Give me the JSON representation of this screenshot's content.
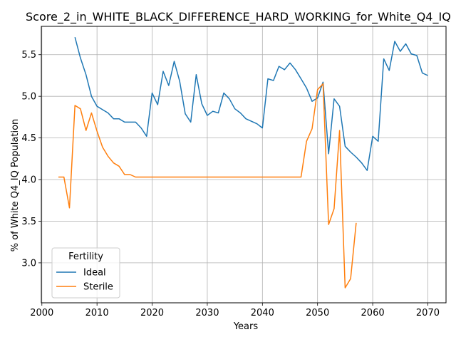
{
  "chart_data": {
    "type": "line",
    "title": "Score_2_in_WHITE_BLACK_DIFFERENCE_HARD_WORKING_for_White_Q4_IQ",
    "xlabel": "Years",
    "ylabel": "% of White Q4_IQ Population",
    "xlim": [
      1999.9,
      2073.3
    ],
    "ylim": [
      2.52,
      5.84
    ],
    "xticks": [
      2000,
      2010,
      2020,
      2030,
      2040,
      2050,
      2060,
      2070
    ],
    "yticks": [
      3.0,
      3.5,
      4.0,
      4.5,
      5.0,
      5.5
    ],
    "ytick_labels": [
      "3.0",
      "3.5",
      "4.0",
      "4.5",
      "5.0",
      "5.5"
    ],
    "grid": true,
    "legend": {
      "title": "Fertility",
      "position": "lower-left"
    },
    "series": [
      {
        "name": "Ideal",
        "color": "#1f77b4",
        "x": [
          2006,
          2007,
          2008,
          2009,
          2010,
          2011,
          2012,
          2013,
          2014,
          2015,
          2016,
          2017,
          2018,
          2019,
          2020,
          2021,
          2022,
          2023,
          2024,
          2025,
          2026,
          2027,
          2028,
          2029,
          2030,
          2031,
          2032,
          2033,
          2034,
          2035,
          2036,
          2037,
          2038,
          2039,
          2040,
          2041,
          2042,
          2043,
          2044,
          2045,
          2046,
          2047,
          2048,
          2049,
          2050,
          2051,
          2052,
          2053,
          2054,
          2055,
          2056,
          2057,
          2058,
          2059,
          2060,
          2061,
          2062,
          2063,
          2064,
          2065,
          2066,
          2067,
          2068,
          2069,
          2070
        ],
        "y": [
          5.71,
          5.46,
          5.26,
          5.0,
          4.88,
          4.84,
          4.8,
          4.73,
          4.73,
          4.69,
          4.69,
          4.69,
          4.62,
          4.52,
          5.04,
          4.9,
          5.3,
          5.13,
          5.42,
          5.18,
          4.79,
          4.69,
          5.26,
          4.91,
          4.77,
          4.82,
          4.8,
          5.04,
          4.97,
          4.85,
          4.8,
          4.73,
          4.7,
          4.67,
          4.62,
          5.21,
          5.19,
          5.36,
          5.32,
          5.4,
          5.32,
          5.21,
          5.1,
          4.94,
          4.98,
          5.17,
          4.31,
          4.97,
          4.88,
          4.4,
          4.33,
          4.27,
          4.2,
          4.11,
          4.52,
          4.46,
          5.45,
          5.31,
          5.66,
          5.54,
          5.63,
          5.51,
          5.49,
          5.28,
          5.25
        ]
      },
      {
        "name": "Sterile",
        "color": "#ff7f0e",
        "x": [
          2003,
          2004,
          2005,
          2006,
          2007,
          2008,
          2009,
          2010,
          2011,
          2012,
          2013,
          2014,
          2015,
          2016,
          2017,
          2018,
          2019,
          2020,
          2021,
          2022,
          2023,
          2024,
          2025,
          2026,
          2027,
          2028,
          2029,
          2030,
          2031,
          2032,
          2033,
          2034,
          2035,
          2036,
          2037,
          2038,
          2039,
          2040,
          2041,
          2042,
          2043,
          2044,
          2045,
          2046,
          2047,
          2048,
          2049,
          2050,
          2051,
          2052,
          2053,
          2054,
          2055,
          2056,
          2057
        ],
        "y": [
          4.03,
          4.03,
          3.66,
          4.89,
          4.85,
          4.59,
          4.8,
          4.58,
          4.39,
          4.28,
          4.2,
          4.16,
          4.06,
          4.06,
          4.03,
          4.03,
          4.03,
          4.03,
          4.03,
          4.03,
          4.03,
          4.03,
          4.03,
          4.03,
          4.03,
          4.03,
          4.03,
          4.03,
          4.03,
          4.03,
          4.03,
          4.03,
          4.03,
          4.03,
          4.03,
          4.03,
          4.03,
          4.03,
          4.03,
          4.03,
          4.03,
          4.03,
          4.03,
          4.03,
          4.03,
          4.46,
          4.61,
          5.08,
          5.15,
          3.46,
          3.65,
          4.59,
          2.7,
          2.81,
          3.48
        ]
      }
    ]
  }
}
